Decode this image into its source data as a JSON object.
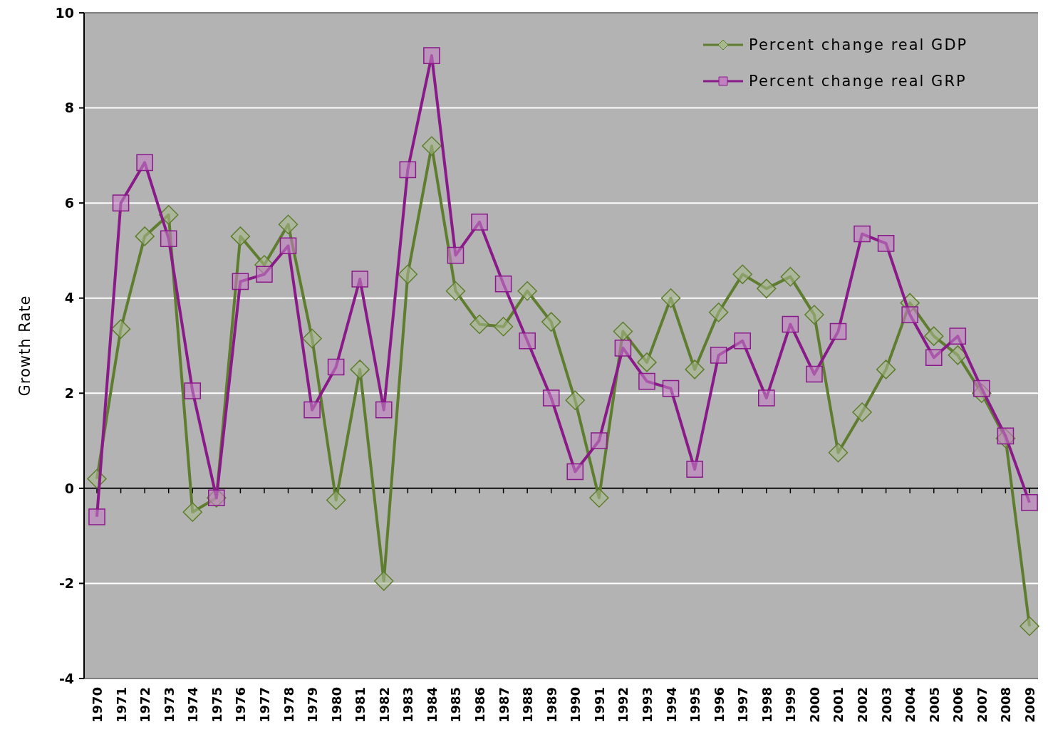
{
  "chart_data": {
    "type": "line",
    "ylabel": "Growth Rate",
    "categories": [
      "1970",
      "1971",
      "1972",
      "1973",
      "1974",
      "1975",
      "1976",
      "1977",
      "1978",
      "1979",
      "1980",
      "1981",
      "1982",
      "1983",
      "1984",
      "1985",
      "1986",
      "1987",
      "1988",
      "1989",
      "1990",
      "1991",
      "1992",
      "1993",
      "1994",
      "1995",
      "1996",
      "1997",
      "1998",
      "1999",
      "2000",
      "2001",
      "2002",
      "2003",
      "2004",
      "2005",
      "2006",
      "2007",
      "2008",
      "2009"
    ],
    "ylim": [
      -4,
      10
    ],
    "yticks": [
      -4,
      -2,
      0,
      2,
      4,
      6,
      8,
      10
    ],
    "grid": "y",
    "legend": "top right",
    "series": [
      {
        "name": "Percent change real GDP",
        "color": "#5f7d2e",
        "marker": "diamond",
        "values": [
          0.2,
          3.35,
          5.3,
          5.75,
          -0.5,
          -0.2,
          5.3,
          4.7,
          5.55,
          3.15,
          -0.25,
          2.5,
          -1.95,
          4.5,
          7.2,
          4.15,
          3.45,
          3.4,
          4.15,
          3.5,
          1.85,
          -0.2,
          3.3,
          2.65,
          4.0,
          2.5,
          3.7,
          4.5,
          4.2,
          4.45,
          3.65,
          0.75,
          1.6,
          2.5,
          3.9,
          3.2,
          2.8,
          2.0,
          1.05,
          -2.9
        ]
      },
      {
        "name": "Percent change real GRP",
        "color": "#8a1a8a",
        "marker": "square",
        "values": [
          -0.6,
          6.0,
          6.85,
          5.25,
          2.05,
          -0.2,
          4.35,
          4.5,
          5.1,
          1.65,
          2.55,
          4.4,
          1.65,
          6.7,
          9.1,
          4.9,
          5.6,
          4.3,
          3.1,
          1.9,
          0.35,
          1.0,
          2.95,
          2.25,
          2.1,
          0.4,
          2.8,
          3.1,
          1.9,
          3.45,
          2.4,
          3.3,
          5.35,
          5.15,
          3.65,
          2.75,
          3.2,
          2.1,
          1.1,
          -0.3
        ]
      }
    ]
  }
}
